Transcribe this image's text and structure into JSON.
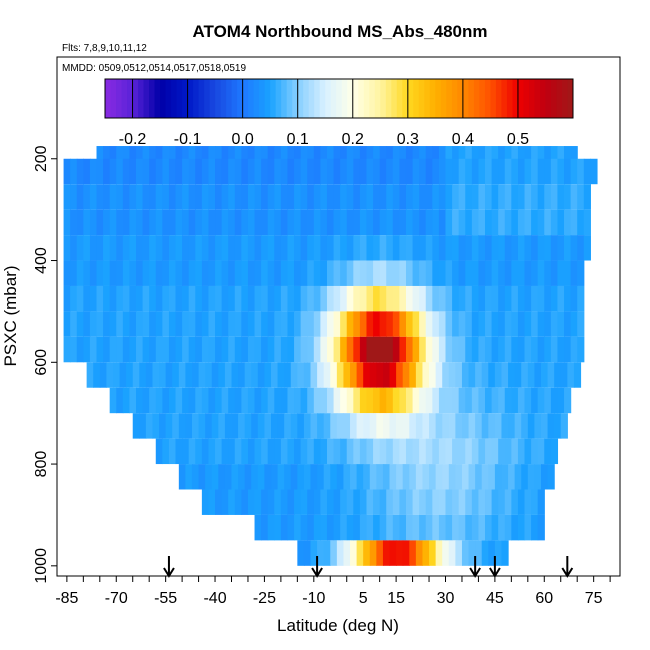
{
  "chart_data": {
    "type": "heatmap",
    "title": "ATOM4 Northbound MS_Abs_480nm",
    "flights_label": "Flts: 7,8,9,10,11,12",
    "dates_label": "MMDD: 0509,0512,0514,0517,0518,0519",
    "xlabel": "Latitude (deg N)",
    "ylabel": "PSXC (mbar)",
    "xlim": [
      -88,
      83
    ],
    "ylim": [
      1020,
      0
    ],
    "x_major_ticks": [
      -85,
      -70,
      -55,
      -40,
      -25,
      -10,
      5,
      15,
      30,
      45,
      60,
      75
    ],
    "x_minor_step": 5,
    "y_ticks": [
      200,
      400,
      600,
      800,
      1000
    ],
    "grid": false,
    "colorbar": {
      "placement": "top",
      "vmin": -0.25,
      "vmax": 0.6,
      "tick_values": [
        -0.2,
        -0.1,
        0.0,
        0.1,
        0.2,
        0.3,
        0.4,
        0.5
      ],
      "tick_labels": [
        "-0.2",
        "-0.1",
        "0.0",
        "0.1",
        "0.2",
        "0.3",
        "0.4",
        "0.5"
      ],
      "color_stops": [
        {
          "v": -0.25,
          "c": "#8a2be2"
        },
        {
          "v": -0.2,
          "c": "#5a22d8"
        },
        {
          "v": -0.15,
          "c": "#0000a8"
        },
        {
          "v": -0.1,
          "c": "#0018c8"
        },
        {
          "v": -0.05,
          "c": "#1848e0"
        },
        {
          "v": 0.0,
          "c": "#1e78ff"
        },
        {
          "v": 0.05,
          "c": "#1aa2ff"
        },
        {
          "v": 0.1,
          "c": "#86cfff"
        },
        {
          "v": 0.15,
          "c": "#d8f0ff"
        },
        {
          "v": 0.2,
          "c": "#ffffe8"
        },
        {
          "v": 0.25,
          "c": "#fff4a0"
        },
        {
          "v": 0.3,
          "c": "#ffd820"
        },
        {
          "v": 0.35,
          "c": "#ffb000"
        },
        {
          "v": 0.4,
          "c": "#ff8800"
        },
        {
          "v": 0.45,
          "c": "#ff5000"
        },
        {
          "v": 0.5,
          "c": "#ee0000"
        },
        {
          "v": 0.55,
          "c": "#c00010"
        },
        {
          "v": 0.6,
          "c": "#a01818"
        }
      ]
    },
    "profile_latitudes": [
      -54,
      -9,
      39,
      45,
      67
    ],
    "layers": [
      {
        "p": 200,
        "x0": -76,
        "x1": 70,
        "base": 0.02
      },
      {
        "p": 225,
        "x0": -86,
        "x1": 76,
        "base": 0.02
      },
      {
        "p": 275,
        "x0": -86,
        "x1": 74,
        "base": 0.03
      },
      {
        "p": 325,
        "x0": -86,
        "x1": 74,
        "base": 0.03
      },
      {
        "p": 375,
        "x0": -86,
        "x1": 74,
        "base": 0.04
      },
      {
        "p": 425,
        "x0": -86,
        "x1": 72,
        "base": 0.04
      },
      {
        "p": 475,
        "x0": -86,
        "x1": 72,
        "base": 0.05
      },
      {
        "p": 525,
        "x0": -86,
        "x1": 72,
        "base": 0.05
      },
      {
        "p": 575,
        "x0": -86,
        "x1": 72,
        "base": 0.05
      },
      {
        "p": 625,
        "x0": -79,
        "x1": 70,
        "base": 0.05
      },
      {
        "p": 675,
        "x0": -72,
        "x1": 68,
        "base": 0.05
      },
      {
        "p": 725,
        "x0": -65,
        "x1": 66,
        "base": 0.05
      },
      {
        "p": 775,
        "x0": -58,
        "x1": 64,
        "base": 0.05
      },
      {
        "p": 825,
        "x0": -51,
        "x1": 62,
        "base": 0.04
      },
      {
        "p": 875,
        "x0": -44,
        "x1": 60,
        "base": 0.04
      },
      {
        "p": 925,
        "x0": -28,
        "x1": 59,
        "base": 0.04
      },
      {
        "p": 975,
        "x0": -15,
        "x1": 48,
        "base": 0.03
      }
    ],
    "plume": {
      "center_lat": 10,
      "center_p": 580,
      "peak": 0.57,
      "half_width_lat": 17,
      "half_width_p": 140
    },
    "surface_plume": {
      "p": 1000,
      "center_lat": 15,
      "peak": 0.45,
      "half_width_lat": 15
    }
  }
}
